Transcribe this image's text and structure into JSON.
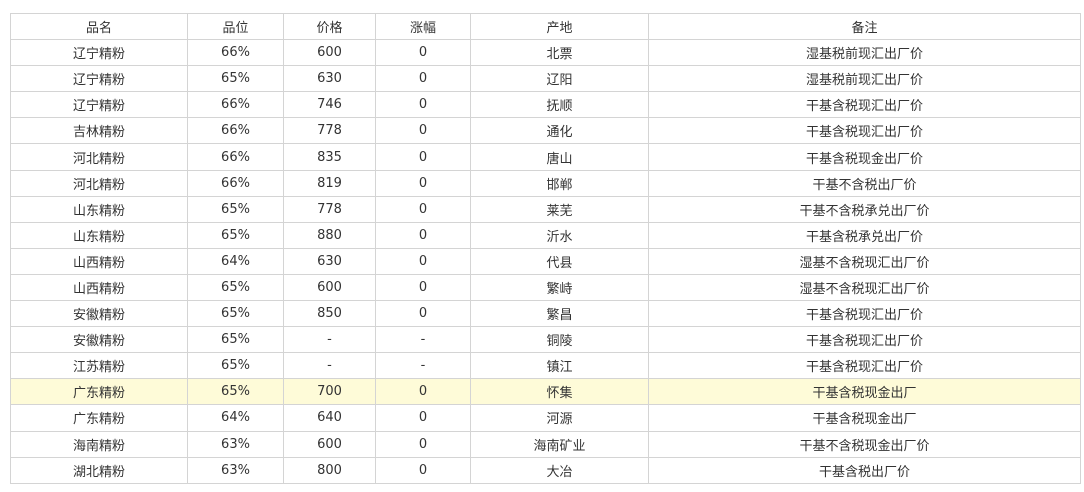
{
  "headers": [
    "品名",
    "品位",
    "价格",
    "涨幅",
    "产地",
    "备注"
  ],
  "highlight_color": "#fefbd8",
  "rows": [
    [
      "辽宁精粉",
      "66%",
      "600",
      "0",
      "北票",
      "湿基税前现汇出厂价"
    ],
    [
      "辽宁精粉",
      "65%",
      "630",
      "0",
      "辽阳",
      "湿基税前现汇出厂价"
    ],
    [
      "辽宁精粉",
      "66%",
      "746",
      "0",
      "抚顺",
      "干基含税现汇出厂价"
    ],
    [
      "吉林精粉",
      "66%",
      "778",
      "0",
      "通化",
      "干基含税现汇出厂价"
    ],
    [
      "河北精粉",
      "66%",
      "835",
      "0",
      "唐山",
      "干基含税现金出厂价"
    ],
    [
      "河北精粉",
      "66%",
      "819",
      "0",
      "邯郸",
      "干基不含税出厂价"
    ],
    [
      "山东精粉",
      "65%",
      "778",
      "0",
      "莱芜",
      "干基不含税承兑出厂价"
    ],
    [
      "山东精粉",
      "65%",
      "880",
      "0",
      "沂水",
      "干基含税承兑出厂价"
    ],
    [
      "山西精粉",
      "64%",
      "630",
      "0",
      "代县",
      "湿基不含税现汇出厂价"
    ],
    [
      "山西精粉",
      "65%",
      "600",
      "0",
      "繁峙",
      "湿基不含税现汇出厂价"
    ],
    [
      "安徽精粉",
      "65%",
      "850",
      "0",
      "繁昌",
      "干基含税现汇出厂价"
    ],
    [
      "安徽精粉",
      "65%",
      "-",
      "-",
      "铜陵",
      "干基含税现汇出厂价"
    ],
    [
      "江苏精粉",
      "65%",
      "-",
      "-",
      "镇江",
      "干基含税现汇出厂价"
    ],
    [
      "广东精粉",
      "65%",
      "700",
      "0",
      "怀集",
      "干基含税现金出厂"
    ],
    [
      "广东精粉",
      "64%",
      "640",
      "0",
      "河源",
      "干基含税现金出厂"
    ],
    [
      "海南精粉",
      "63%",
      "600",
      "0",
      "海南矿业",
      "干基不含税现金出厂价"
    ],
    [
      "湖北精粉",
      "63%",
      "800",
      "0",
      "大冶",
      "干基含税出厂价"
    ]
  ],
  "highlighted_row": 13
}
